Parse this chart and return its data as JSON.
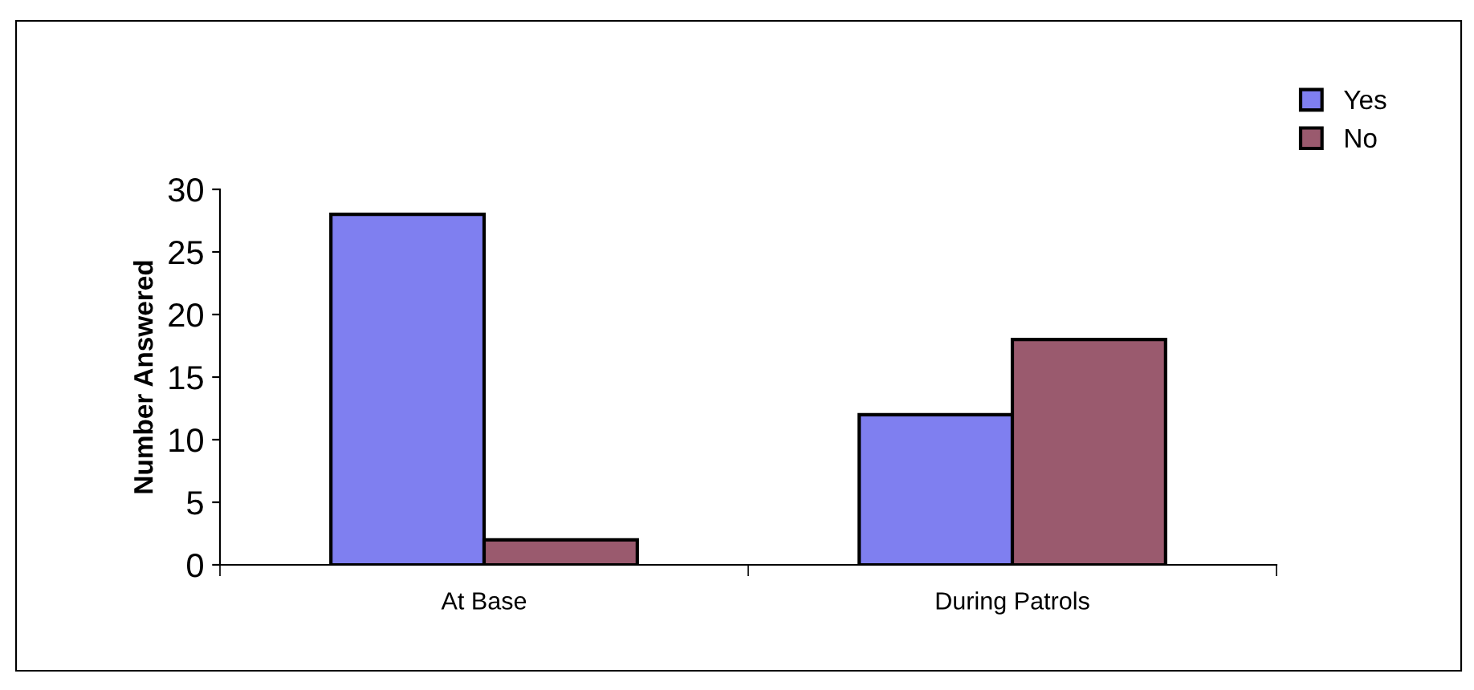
{
  "chart_data": {
    "type": "bar",
    "ylabel": "Number Answered",
    "categories": [
      "At Base",
      "During Patrols"
    ],
    "series": [
      {
        "name": "Yes",
        "color": "#7f7ff0",
        "values": [
          28,
          12
        ]
      },
      {
        "name": "No",
        "color": "#9a5a6e",
        "values": [
          2,
          18
        ]
      }
    ],
    "ylim": [
      0,
      30
    ],
    "yticks": [
      0,
      5,
      10,
      15,
      20,
      25,
      30
    ],
    "grid": false,
    "legend": "top right"
  }
}
